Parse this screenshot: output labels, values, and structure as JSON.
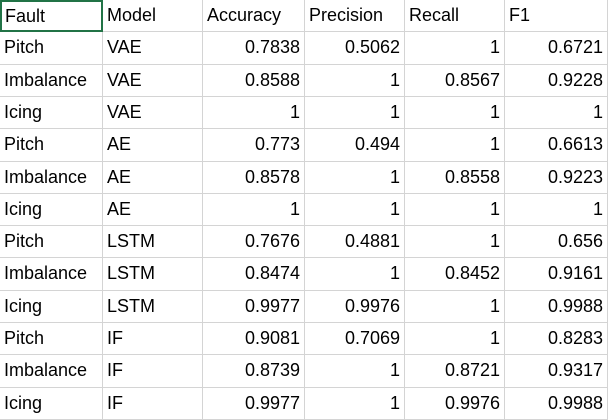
{
  "table": {
    "header": [
      "Fault",
      "Model",
      "Accuracy",
      "Precision",
      "Recall",
      "F1"
    ],
    "rows": [
      [
        "Pitch",
        "VAE",
        0.7838,
        0.5062,
        1,
        0.6721
      ],
      [
        "Imbalance",
        "VAE",
        0.8588,
        1,
        0.8567,
        0.9228
      ],
      [
        "Icing",
        "VAE",
        1,
        1,
        1,
        1
      ],
      [
        "Pitch",
        "AE",
        0.773,
        0.494,
        1,
        0.6613
      ],
      [
        "Imbalance",
        "AE",
        0.8578,
        1,
        0.8558,
        0.9223
      ],
      [
        "Icing",
        "AE",
        1,
        1,
        1,
        1
      ],
      [
        "Pitch",
        "LSTM",
        0.7676,
        0.4881,
        1,
        0.656
      ],
      [
        "Imbalance",
        "LSTM",
        0.8474,
        1,
        0.8452,
        0.9161
      ],
      [
        "Icing",
        "LSTM",
        0.9977,
        0.9976,
        1,
        0.9988
      ],
      [
        "Pitch",
        "IF",
        0.9081,
        0.7069,
        1,
        0.8283
      ],
      [
        "Imbalance",
        "IF",
        0.8739,
        1,
        0.8721,
        0.9317
      ],
      [
        "Icing",
        "IF",
        0.9977,
        1,
        0.9976,
        0.9988
      ]
    ]
  }
}
